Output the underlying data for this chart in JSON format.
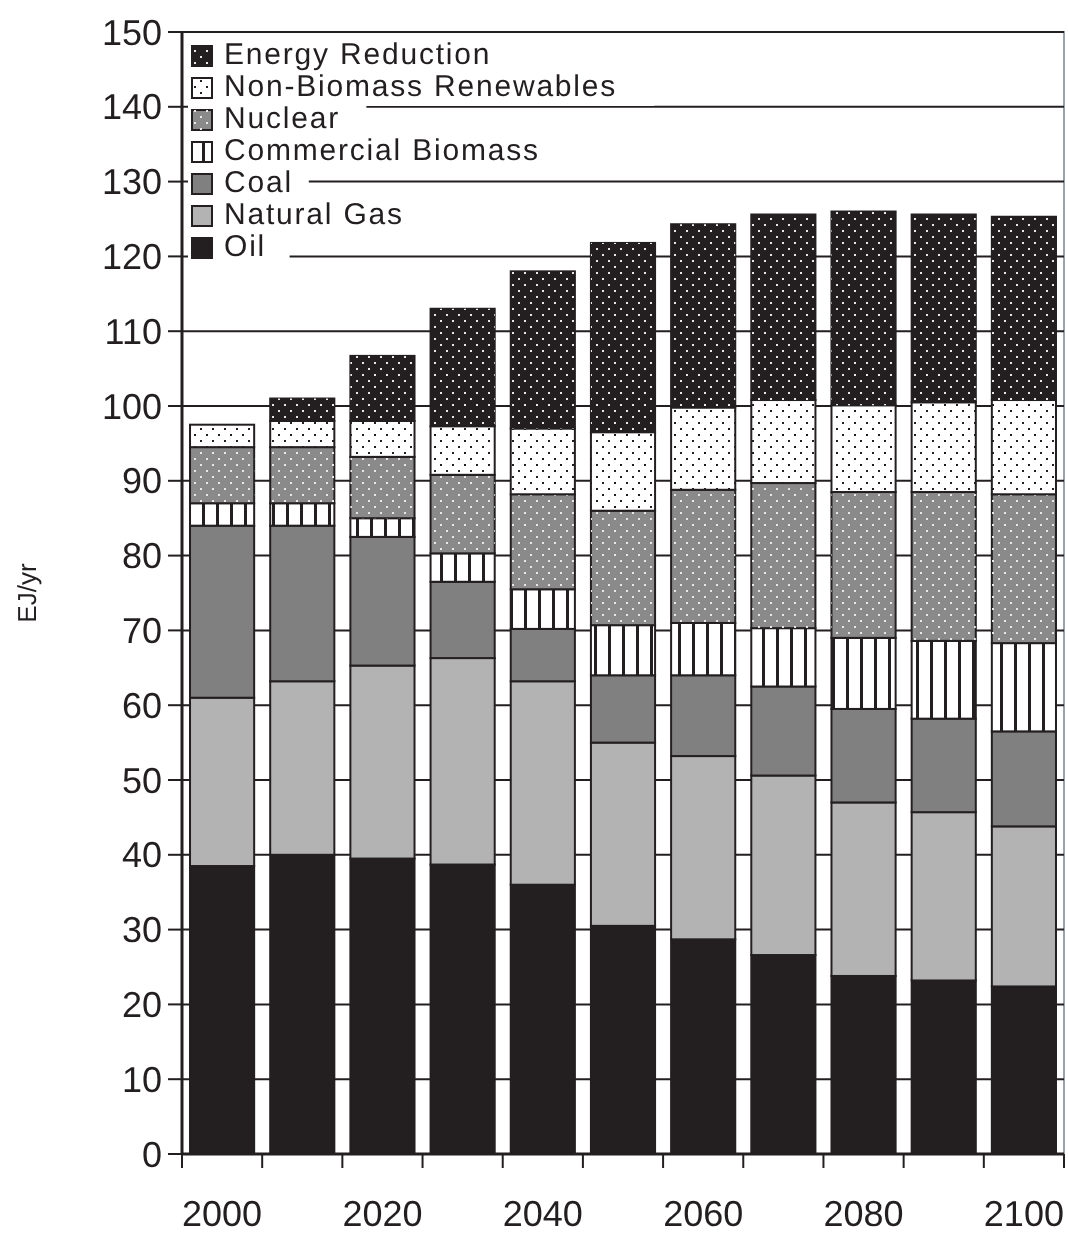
{
  "chart_data": {
    "type": "bar",
    "stacked": true,
    "ylabel": "EJ/yr",
    "categories": [
      "2000",
      null,
      "2020",
      null,
      "2040",
      null,
      "2060",
      null,
      "2080",
      null,
      "2100"
    ],
    "series": [
      {
        "name": "Oil",
        "color": "#231f20",
        "values": [
          38.5,
          40,
          39.5,
          38.7,
          36,
          30.5,
          28.7,
          26.6,
          23.8,
          23.2,
          22.4
        ]
      },
      {
        "name": "Natural Gas",
        "color": "#b3b3b3",
        "values": [
          22.5,
          23.2,
          25.8,
          27.6,
          27.2,
          24.5,
          24.5,
          24,
          23.2,
          22.5,
          21.4
        ]
      },
      {
        "name": "Coal",
        "color": "#808080",
        "values": [
          23,
          20.8,
          17.2,
          10.2,
          7,
          9,
          10.8,
          11.9,
          12.5,
          12.5,
          12.7
        ]
      },
      {
        "name": "Commercial Biomass",
        "color": "#ffffff",
        "values": [
          3,
          3,
          2.5,
          3.8,
          5.3,
          6.7,
          7,
          7.8,
          9.5,
          10.4,
          11.8
        ]
      },
      {
        "name": "Nuclear",
        "color": "#8a8a8a",
        "values": [
          7.5,
          7.5,
          8.2,
          10.5,
          12.7,
          15.3,
          17.8,
          19.4,
          19.5,
          19.9,
          19.9
        ]
      },
      {
        "name": "Non-Biomass Renewables",
        "color": "#ffffff",
        "values": [
          3,
          3.5,
          4.8,
          6.5,
          8.8,
          10.5,
          11,
          11.1,
          11.6,
          12,
          12.6
        ]
      },
      {
        "name": "Energy Reduction",
        "color": "#231f20",
        "values": [
          0,
          3,
          8.7,
          15.7,
          21,
          25.3,
          24.5,
          24.8,
          25.9,
          25.1,
          24.5
        ]
      }
    ],
    "ylim": [
      0,
      150
    ],
    "yticks": [
      0,
      10,
      20,
      30,
      40,
      50,
      60,
      70,
      80,
      90,
      100,
      110,
      120,
      130,
      140,
      150
    ],
    "grid": "y",
    "legend": "top left"
  }
}
